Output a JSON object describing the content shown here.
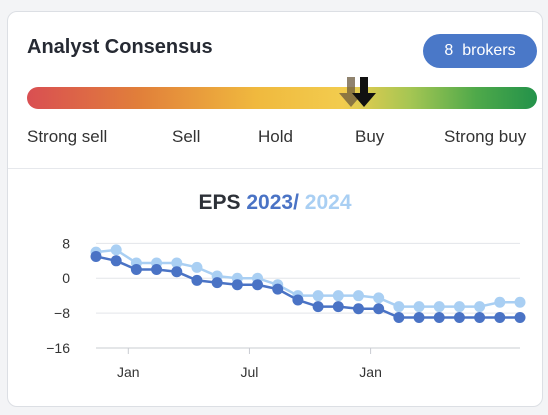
{
  "header": {
    "title": "Analyst Consensus",
    "brokers_count": "8",
    "brokers_label": "brokers"
  },
  "consensus": {
    "scale_labels": [
      "Strong sell",
      "Sell",
      "Hold",
      "Buy",
      "Strong buy"
    ],
    "marker_value": 0.66,
    "previous_marker_value": 0.64
  },
  "eps": {
    "label": "EPS",
    "year1": "2023",
    "separator": "/",
    "year2": "2024"
  },
  "colors": {
    "accent": "#4a78c8",
    "series_2023": "#4a73c5",
    "series_2024": "#a9cff3"
  },
  "chart_data": {
    "type": "line",
    "title": "EPS 2023 / 2024",
    "x": [
      0,
      1,
      2,
      3,
      4,
      5,
      6,
      7,
      8,
      9,
      10,
      11,
      12,
      13,
      14,
      15,
      16,
      17,
      18,
      19,
      20,
      21
    ],
    "x_tick_labels": [
      {
        "x": 1.6,
        "label": "Jan"
      },
      {
        "x": 7.6,
        "label": "Jul"
      },
      {
        "x": 13.6,
        "label": "Jan"
      }
    ],
    "yticks": [
      8,
      0,
      -8,
      -16
    ],
    "ylim": [
      -16,
      9
    ],
    "grid": true,
    "series": [
      {
        "name": "2023",
        "values": [
          5,
          4,
          2,
          2,
          1.5,
          -0.5,
          -1,
          -1.5,
          -1.5,
          -2.5,
          -5,
          -6.5,
          -6.5,
          -7,
          -7,
          -9,
          -9,
          -9,
          -9,
          -9,
          -9,
          -9
        ]
      },
      {
        "name": "2024",
        "values": [
          6,
          6.5,
          3.5,
          3.5,
          3.5,
          2.5,
          0.5,
          0,
          0,
          -1.5,
          -4,
          -4,
          -4,
          -4,
          -4.5,
          -6.5,
          -6.5,
          -6.5,
          -6.5,
          -6.5,
          -5.5,
          -5.5
        ]
      }
    ]
  }
}
